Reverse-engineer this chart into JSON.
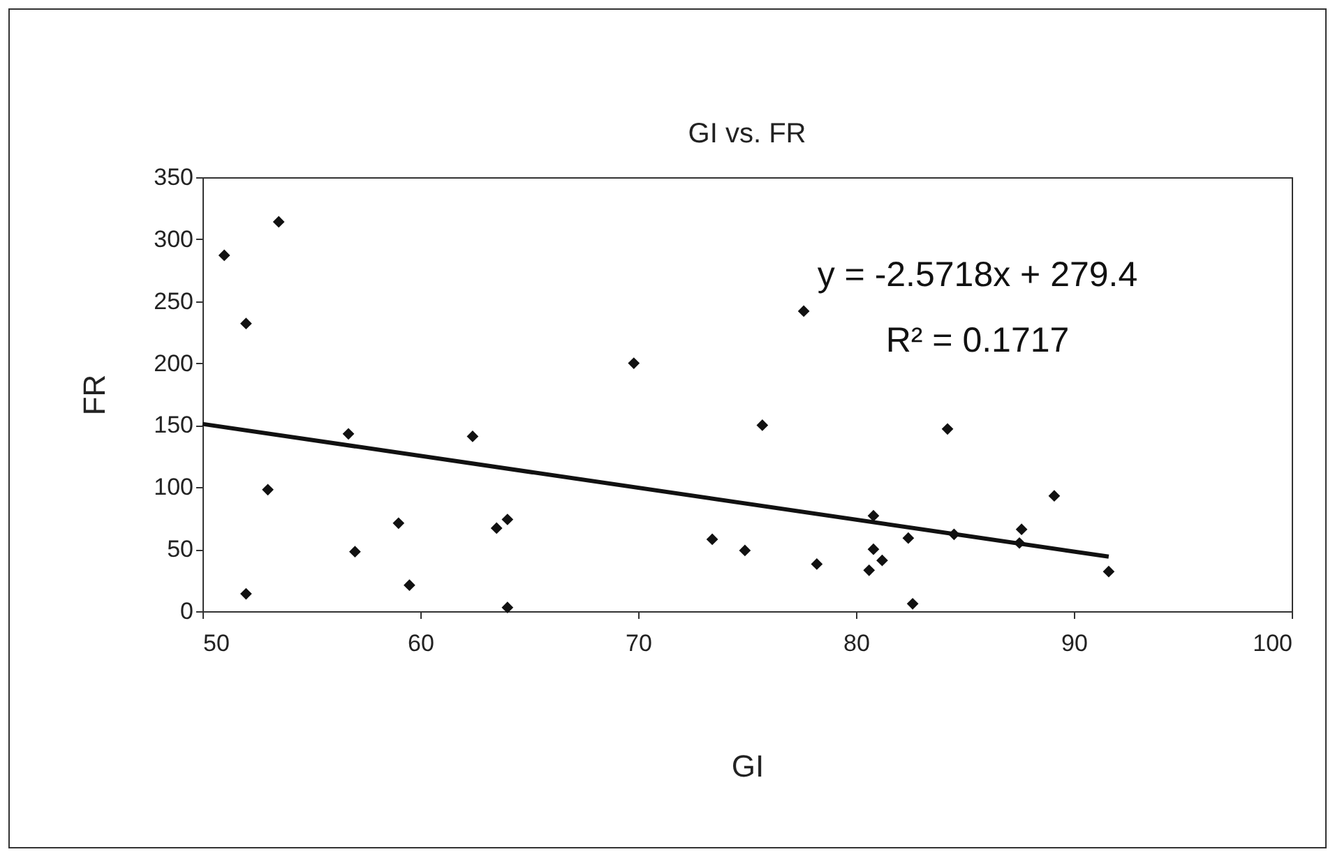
{
  "chart_data": {
    "type": "scatter",
    "title": "GI vs. FR",
    "xlabel": "GI",
    "ylabel": "FR",
    "xlim": [
      50,
      100
    ],
    "xticks": [
      50,
      60,
      70,
      80,
      90,
      100
    ],
    "ylim": [
      0,
      350
    ],
    "yticks": [
      0,
      50,
      100,
      150,
      200,
      250,
      300,
      350
    ],
    "grid": false,
    "annotations": [
      "y = -2.5718x + 279.4",
      "R² = 0.1717"
    ],
    "series": [
      {
        "color": "#111111",
        "marker": "diamond",
        "x": [
          51,
          52,
          52,
          53,
          53.5,
          56.7,
          57,
          59,
          59.5,
          62.4,
          63.5,
          64,
          64,
          69.8,
          73.4,
          74.9,
          77.6,
          78.2,
          75.7,
          80.6,
          80.8,
          80.8,
          81.2,
          82.4,
          82.6,
          84.2,
          84.5,
          87.5,
          87.6,
          89.1,
          91.6
        ],
        "values": [
          287,
          232,
          14,
          98,
          314,
          143,
          48,
          71,
          21,
          141,
          67,
          74,
          3,
          200,
          58,
          49,
          242,
          38,
          150,
          33,
          50,
          77,
          41,
          59,
          6,
          147,
          62,
          55,
          66,
          93,
          32
        ]
      },
      {
        "type": "line",
        "color": "#111111",
        "x": [
          50,
          91.6
        ],
        "values": [
          151,
          44
        ]
      }
    ]
  }
}
